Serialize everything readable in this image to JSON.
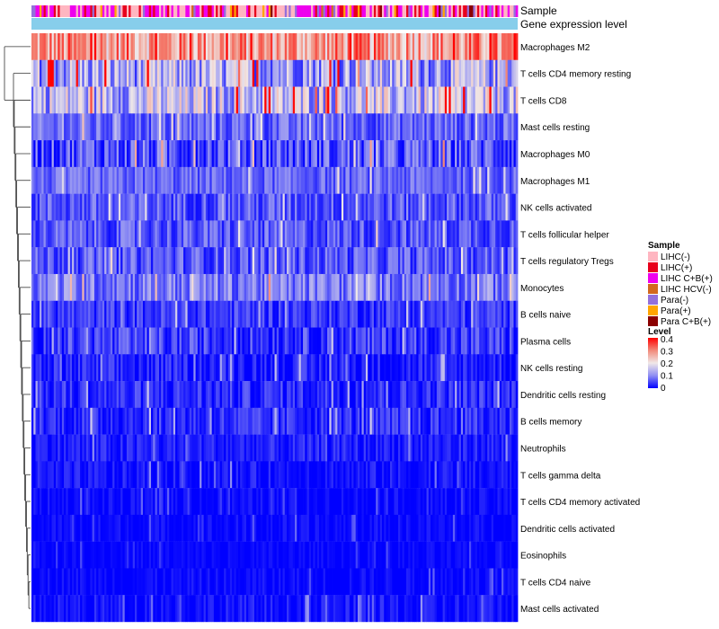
{
  "chart_data": {
    "type": "heatmap",
    "annotation_labels": [
      "Sample",
      "Gene expression level"
    ],
    "rows": [
      {
        "label": "Macrophages M2",
        "mean": 0.28,
        "spread": 0.1
      },
      {
        "label": "T cells CD4 memory resting",
        "mean": 0.13,
        "spread": 0.1
      },
      {
        "label": "T cells CD8",
        "mean": 0.15,
        "spread": 0.1
      },
      {
        "label": "Mast cells resting",
        "mean": 0.07,
        "spread": 0.05
      },
      {
        "label": "Macrophages M0",
        "mean": 0.06,
        "spread": 0.07
      },
      {
        "label": "Macrophages M1",
        "mean": 0.07,
        "spread": 0.04
      },
      {
        "label": "NK cells activated",
        "mean": 0.06,
        "spread": 0.05
      },
      {
        "label": "T cells follicular helper",
        "mean": 0.06,
        "spread": 0.05
      },
      {
        "label": "T cells regulatory  Tregs",
        "mean": 0.06,
        "spread": 0.05
      },
      {
        "label": "Monocytes",
        "mean": 0.09,
        "spread": 0.06
      },
      {
        "label": "B cells naive",
        "mean": 0.04,
        "spread": 0.04
      },
      {
        "label": "Plasma cells",
        "mean": 0.04,
        "spread": 0.05
      },
      {
        "label": "NK cells resting",
        "mean": 0.02,
        "spread": 0.04
      },
      {
        "label": "Dendritic cells resting",
        "mean": 0.03,
        "spread": 0.04
      },
      {
        "label": "B cells memory",
        "mean": 0.03,
        "spread": 0.04
      },
      {
        "label": "Neutrophils",
        "mean": 0.02,
        "spread": 0.03
      },
      {
        "label": "T cells gamma delta",
        "mean": 0.01,
        "spread": 0.03
      },
      {
        "label": "T cells CD4 memory activated",
        "mean": 0.005,
        "spread": 0.02
      },
      {
        "label": "Dendritic cells activated",
        "mean": 0.005,
        "spread": 0.02
      },
      {
        "label": "Eosinophils",
        "mean": 0.003,
        "spread": 0.015
      },
      {
        "label": "T cells CD4 naive",
        "mean": 0.005,
        "spread": 0.02
      },
      {
        "label": "Mast cells activated",
        "mean": 0.01,
        "spread": 0.03
      }
    ],
    "columns_count": 240,
    "sample_groups": [
      {
        "name": "LIHC(-)",
        "color": "#ffb6c1"
      },
      {
        "name": "LIHC(+)",
        "color": "#e8001c"
      },
      {
        "name": "LIHC C+B(+)",
        "color": "#ee00ee"
      },
      {
        "name": "LIHC HCV(-)",
        "color": "#d2691e"
      },
      {
        "name": "Para(-)",
        "color": "#9370db"
      },
      {
        "name": "Para(+)",
        "color": "#ffa500"
      },
      {
        "name": "Para C+B(+)",
        "color": "#8b0000"
      }
    ],
    "gene_expression_color": "#87ceeb",
    "color_scale": {
      "min": 0,
      "max": 0.4,
      "stops": [
        {
          "value": 0,
          "color": "#0000ff"
        },
        {
          "value": 0.1,
          "color": "#8e8ef3"
        },
        {
          "value": 0.2,
          "color": "#f0e8e8"
        },
        {
          "value": 0.3,
          "color": "#f28a7a"
        },
        {
          "value": 0.4,
          "color": "#ff0000"
        }
      ]
    }
  },
  "legend": {
    "sample_title": "Sample",
    "level_title": "Level",
    "level_ticks": [
      "0.4",
      "0.3",
      "0.2",
      "0.1",
      "0"
    ]
  }
}
